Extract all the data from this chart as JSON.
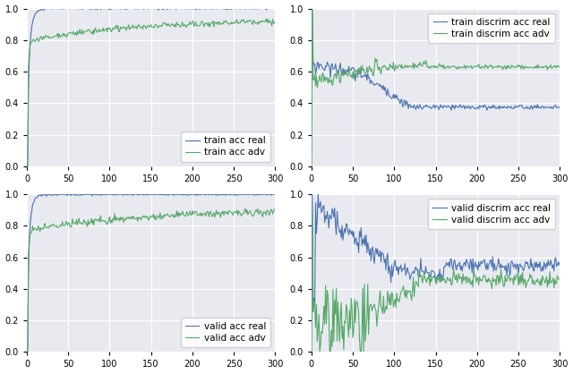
{
  "blue_color": "#4c72b0",
  "green_color": "#55a868",
  "line_width": 0.8,
  "xlim": [
    0,
    300
  ],
  "ylim": [
    0.0,
    1.0
  ],
  "xticks": [
    0,
    50,
    100,
    150,
    200,
    250,
    300
  ],
  "yticks": [
    0.0,
    0.2,
    0.4,
    0.6,
    0.8,
    1.0
  ],
  "legend_fontsize": 7.5,
  "tick_fontsize": 7,
  "facecolor": "#e8eaf0",
  "grid_color": "white",
  "legend_labels": [
    [
      "train acc real",
      "train acc adv"
    ],
    [
      "train discrim acc real",
      "train discrim acc adv"
    ],
    [
      "valid acc real",
      "valid acc adv"
    ],
    [
      "valid discrim acc real",
      "valid discrim acc adv"
    ]
  ],
  "legend_locs": [
    "lower right",
    "upper right",
    "lower right",
    "upper right"
  ]
}
